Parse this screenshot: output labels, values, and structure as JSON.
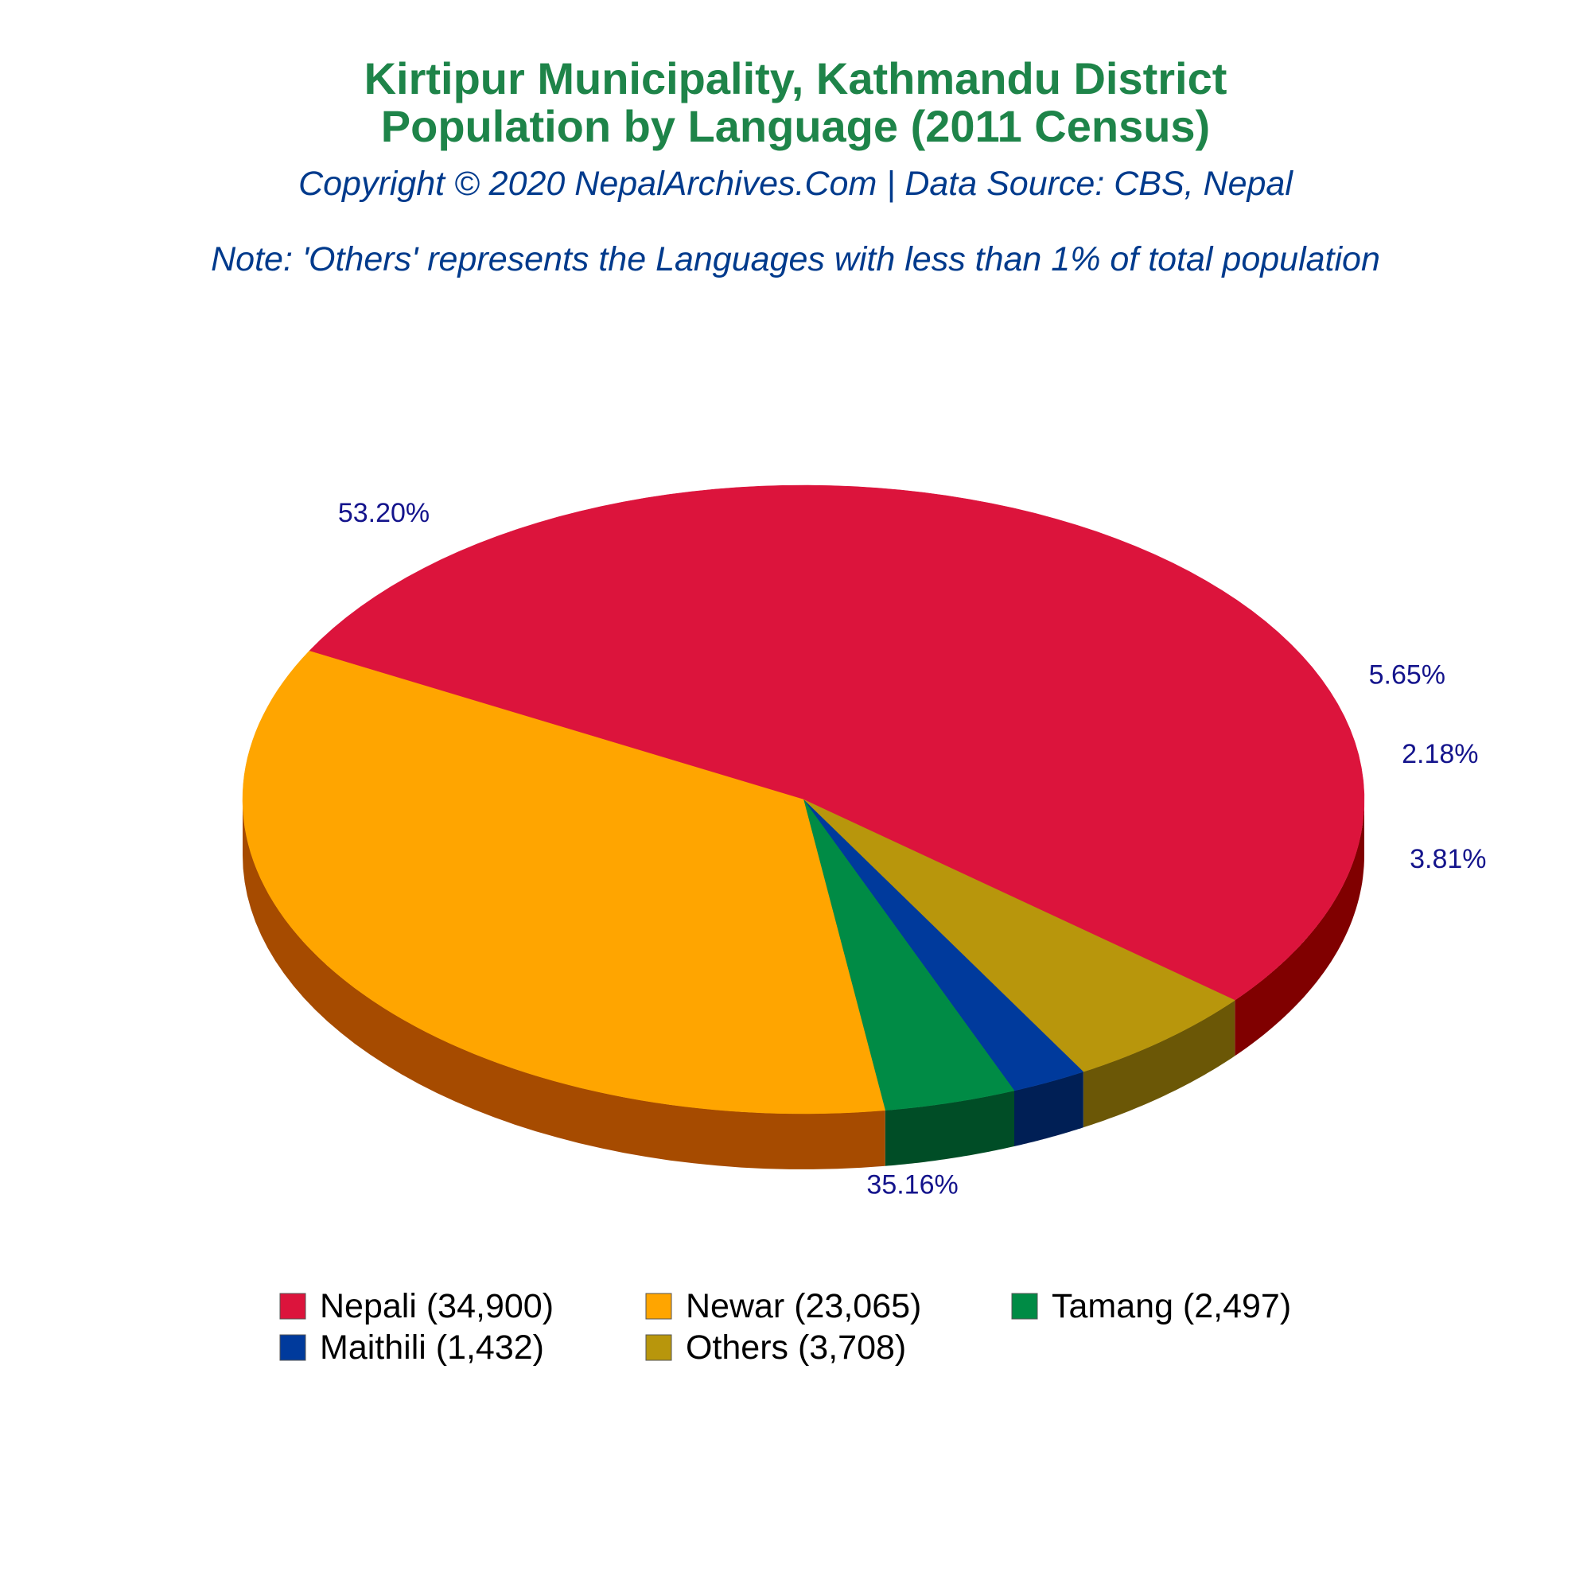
{
  "chart_data": {
    "type": "pie",
    "title_lines": [
      "Kirtipur Municipality, Kathmandu District",
      "Population by Language (2011 Census)"
    ],
    "subtitle": "Copyright © 2020 NepalArchives.Com | Data Source: CBS, Nepal",
    "note": "Note: 'Others' represents the Languages with less than 1% of total population",
    "slices": [
      {
        "name": "Nepali",
        "value": 34900,
        "percent_label": "53.20%",
        "legend_label": "Nepali (34,900)",
        "color": "#dc143c",
        "side_color": "#800000"
      },
      {
        "name": "Newar",
        "value": 23065,
        "percent_label": "35.16%",
        "legend_label": "Newar (23,065)",
        "color": "#ffa500",
        "side_color": "#a64b00"
      },
      {
        "name": "Tamang",
        "value": 2497,
        "percent_label": "3.81%",
        "legend_label": "Tamang (2,497)",
        "color": "#008b45",
        "side_color": "#004d26"
      },
      {
        "name": "Maithili",
        "value": 1432,
        "percent_label": "2.18%",
        "legend_label": "Maithili (1,432)",
        "color": "#003a9c",
        "side_color": "#001f55"
      },
      {
        "name": "Others",
        "value": 3708,
        "percent_label": "5.65%",
        "legend_label": "Others (3,708)",
        "color": "#b8960c",
        "side_color": "#6b5706"
      }
    ],
    "legend_placement": "bottom",
    "three_d": true
  }
}
